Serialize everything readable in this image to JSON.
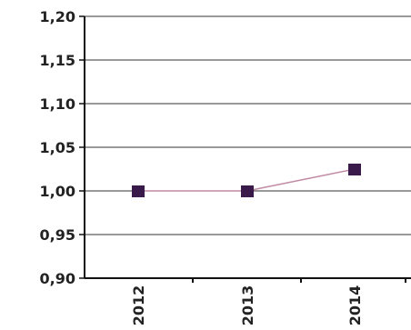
{
  "chart_data": {
    "type": "line",
    "title": "",
    "xlabel": "",
    "ylabel": "",
    "categories": [
      "2012",
      "2013",
      "2014"
    ],
    "series": [
      {
        "values": [
          1.0,
          1.0,
          1.025
        ]
      }
    ],
    "ylim": [
      0.9,
      1.2
    ],
    "yticks": [
      "0,90",
      "0,95",
      "1,00",
      "1,05",
      "1,10",
      "1,15",
      "1,20"
    ],
    "grid": true,
    "legend": "none",
    "colors": {
      "line": "#c08aa3",
      "marker": "#3a1a4a",
      "grid": "#333333",
      "axis": "#111111",
      "text": "#222222"
    }
  }
}
